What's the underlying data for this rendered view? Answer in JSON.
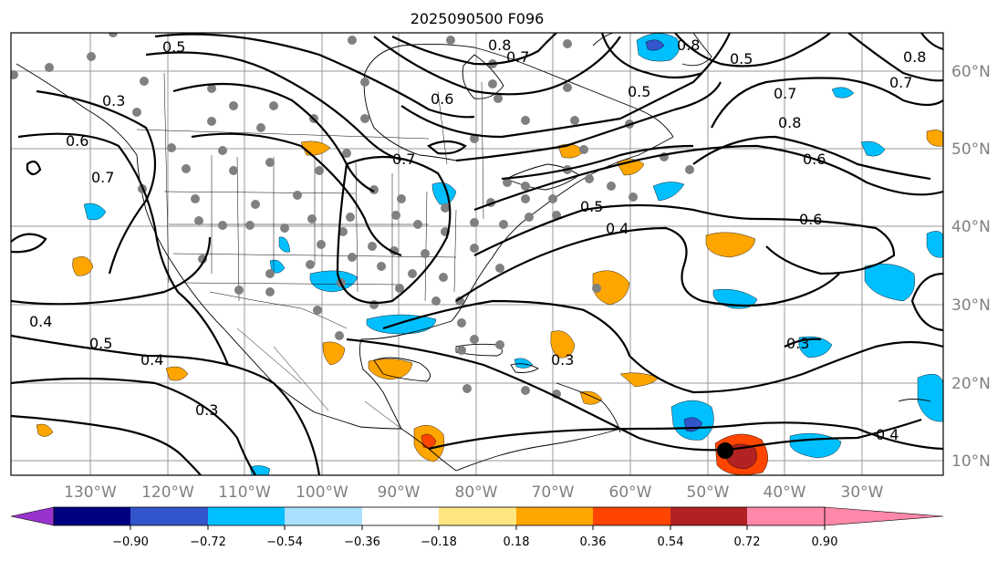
{
  "title": "2025090500 F096",
  "lon_labels": [
    "130°W",
    "120°W",
    "110°W",
    "100°W",
    "90°W",
    "80°W",
    "70°W",
    "60°W",
    "50°W",
    "40°W",
    "30°W"
  ],
  "lat_labels": [
    "60°N",
    "50°N",
    "40°N",
    "30°N",
    "20°N",
    "10°N"
  ],
  "colorbar": {
    "tick_labels": [
      "−0.90",
      "−0.72",
      "−0.54",
      "−0.36",
      "−0.18",
      "0.18",
      "0.36",
      "0.54",
      "0.72",
      "0.90"
    ],
    "colors": [
      "#9933cc",
      "#000080",
      "#3355cc",
      "#00bfff",
      "#aadfff",
      "#ffffff",
      "#ffe680",
      "#ffa500",
      "#ff4500",
      "#b22222",
      "#ff88aa"
    ]
  },
  "contour_labels": [
    "0.5",
    "0.8",
    "0.7",
    "0.8",
    "0.5",
    "0.8",
    "0.7",
    "0.5",
    "0.6",
    "0.7",
    "0.8",
    "0.6",
    "0.7",
    "0.3",
    "0.6",
    "0.7",
    "0.4",
    "0.5",
    "0.6",
    "0.4",
    "0.4",
    "0.5",
    "0.3",
    "0.3",
    "0.4",
    "0.3"
  ]
}
